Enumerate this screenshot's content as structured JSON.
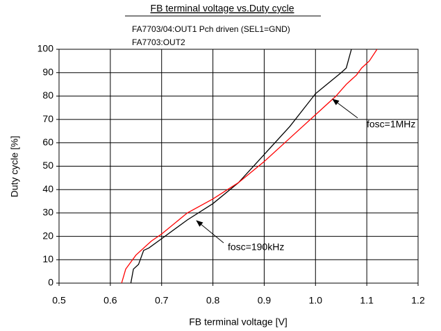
{
  "chart_data": {
    "type": "line",
    "title": "FB terminal voltage vs.Duty cycle",
    "subtitle": [
      "FA7703/04:OUT1 Pch driven (SEL1=GND)",
      "FA7703:OUT2"
    ],
    "x_label": "FB terminal voltage [V]",
    "y_label": "Duty cycle [%]",
    "xlim": [
      0.5,
      1.2
    ],
    "ylim": [
      0,
      100
    ],
    "xticks": [
      0.5,
      0.6,
      0.7,
      0.8,
      0.9,
      {
        "value": 1.0,
        "label": "1.0"
      },
      1.1,
      1.2
    ],
    "yticks": [
      0,
      10,
      20,
      30,
      40,
      50,
      60,
      70,
      80,
      90,
      100
    ],
    "grid": true,
    "series": [
      {
        "name": "fosc=190kHz",
        "color": "#000000",
        "x": [
          0.64,
          0.645,
          0.655,
          0.665,
          0.675,
          0.7,
          0.75,
          0.8,
          0.85,
          0.9,
          0.95,
          1.0,
          1.05,
          1.06,
          1.07
        ],
        "values": [
          0,
          6,
          8,
          14,
          15,
          19,
          27,
          34,
          43,
          55,
          67,
          81,
          90,
          92,
          100
        ]
      },
      {
        "name": "fosc=1MHz",
        "color": "#ff0000",
        "x": [
          0.622,
          0.63,
          0.65,
          0.68,
          0.7,
          0.75,
          0.8,
          0.85,
          0.9,
          0.95,
          1.0,
          1.04,
          1.06,
          1.08,
          1.09,
          1.105,
          1.12
        ],
        "values": [
          0,
          6,
          12,
          18,
          21,
          30,
          36,
          43,
          52,
          62,
          72,
          80,
          85,
          89,
          92,
          95,
          100
        ]
      }
    ]
  }
}
